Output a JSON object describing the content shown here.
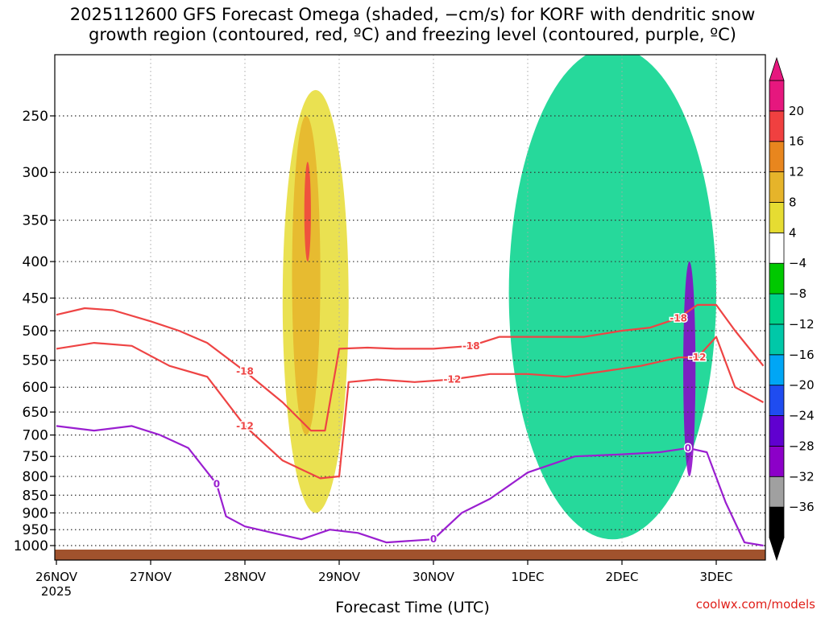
{
  "title": {
    "line1": "2025112600 GFS Forecast Omega (shaded, −cm/s) for KORF with dendritic snow",
    "line2": "growth region (contoured, red, ºC) and freezing level (contoured, purple, ºC)"
  },
  "credit": "coolwx.com/models",
  "chart_data": {
    "type": "heatmap",
    "xlabel": "Forecast Time (UTC)",
    "x_ticks": [
      "26NOV",
      "27NOV",
      "28NOV",
      "29NOV",
      "30NOV",
      "1DEC",
      "2DEC",
      "3DEC"
    ],
    "x_year": "2025",
    "x_range_days": [
      0,
      7.5
    ],
    "y_ticks": [
      250,
      300,
      350,
      400,
      450,
      500,
      550,
      600,
      650,
      700,
      750,
      800,
      850,
      900,
      950,
      1000
    ],
    "y_range_hpa": [
      1025,
      200
    ],
    "grid": true,
    "colorbar": {
      "levels": [
        -36,
        -32,
        -28,
        -24,
        -20,
        -16,
        -12,
        -8,
        -4,
        4,
        8,
        12,
        16,
        20
      ],
      "colors": [
        "#000000",
        "#a0a0a0",
        "#8c00c8",
        "#6000d0",
        "#1f4cf0",
        "#00a6f5",
        "#00c8a8",
        "#00d28a",
        "#00c800",
        "#ffffff",
        "#e6dc32",
        "#e6b42a",
        "#e8861e",
        "#f04040",
        "#e6177e"
      ]
    },
    "omega_regions": [
      {
        "label": "upward motion 4-8 cm/s",
        "x": [
          2.4,
          3.1
        ],
        "y": [
          230,
          900
        ],
        "value": 6
      },
      {
        "label": "upward motion 8-12 cm/s",
        "x": [
          2.5,
          2.8
        ],
        "y": [
          250,
          700
        ],
        "value": 10
      },
      {
        "label": "upward motion 16-20 cm/s",
        "x": [
          2.63,
          2.7
        ],
        "y": [
          290,
          400
        ],
        "value": 18
      },
      {
        "label": "downward motion -8 to -12 cm/s",
        "x": [
          4.8,
          7.0
        ],
        "y": [
          200,
          980
        ],
        "value": -10
      },
      {
        "label": "downward motion -20 to -36 cm/s",
        "x": [
          6.65,
          6.78
        ],
        "y": [
          400,
          800
        ],
        "value": -30
      }
    ],
    "series": [
      {
        "name": "-18",
        "color": "#ee4444",
        "x": [
          0.0,
          0.3,
          0.6,
          1.0,
          1.3,
          1.6,
          2.0,
          2.4,
          2.7,
          2.85,
          3.0,
          3.3,
          3.6,
          4.0,
          4.4,
          4.7,
          5.0,
          5.3,
          5.6,
          6.0,
          6.3,
          6.6,
          6.8,
          7.0,
          7.2,
          7.5
        ],
        "y": [
          475,
          465,
          468,
          485,
          500,
          520,
          570,
          630,
          690,
          690,
          530,
          528,
          530,
          530,
          525,
          510,
          510,
          510,
          510,
          500,
          495,
          480,
          460,
          460,
          500,
          560
        ]
      },
      {
        "name": "-12",
        "color": "#ee4444",
        "x": [
          0.0,
          0.4,
          0.8,
          1.2,
          1.6,
          2.0,
          2.4,
          2.8,
          3.0,
          3.1,
          3.4,
          3.8,
          4.2,
          4.6,
          5.0,
          5.4,
          5.8,
          6.2,
          6.6,
          6.8,
          7.0,
          7.2,
          7.5
        ],
        "y": [
          530,
          520,
          525,
          560,
          580,
          680,
          760,
          805,
          800,
          590,
          585,
          590,
          585,
          575,
          575,
          580,
          570,
          560,
          545,
          545,
          510,
          600,
          630
        ]
      },
      {
        "name": "0",
        "color": "#9a1fd0",
        "x": [
          0.0,
          0.4,
          0.8,
          1.1,
          1.4,
          1.7,
          1.8,
          2.0,
          2.3,
          2.6,
          2.9,
          3.2,
          3.5,
          4.0,
          4.3,
          4.6,
          5.0,
          5.5,
          6.0,
          6.4,
          6.7,
          6.9,
          7.1,
          7.3,
          7.5
        ],
        "y": [
          680,
          690,
          680,
          700,
          730,
          820,
          910,
          940,
          960,
          980,
          950,
          960,
          990,
          980,
          900,
          860,
          790,
          750,
          745,
          740,
          730,
          740,
          870,
          990,
          1000
        ]
      }
    ]
  }
}
